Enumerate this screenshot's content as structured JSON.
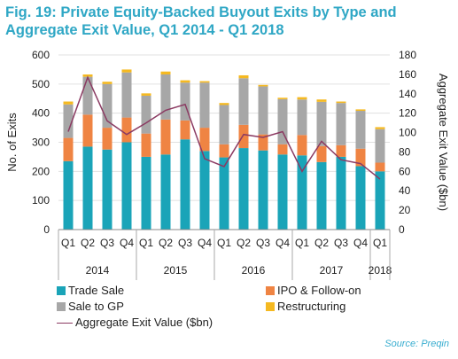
{
  "chart_data": {
    "type": "bar",
    "stacked": true,
    "title": "Fig. 19: Private Equity-Backed Buyout Exits by Type and Aggregate Exit Value, Q1 2014 - Q1 2018",
    "categories": [
      "Q1",
      "Q2",
      "Q3",
      "Q4",
      "Q1",
      "Q2",
      "Q3",
      "Q4",
      "Q1",
      "Q2",
      "Q3",
      "Q4",
      "Q1",
      "Q2",
      "Q3",
      "Q4",
      "Q1"
    ],
    "year_groups": [
      {
        "label": "2014",
        "count": 4
      },
      {
        "label": "2015",
        "count": 4
      },
      {
        "label": "2016",
        "count": 4
      },
      {
        "label": "2017",
        "count": 4
      },
      {
        "label": "2018",
        "count": 1
      }
    ],
    "series": [
      {
        "name": "Trade Sale",
        "color": "#1aa4b8",
        "axis": "left",
        "values": [
          235,
          285,
          275,
          300,
          250,
          258,
          310,
          270,
          248,
          280,
          272,
          258,
          255,
          232,
          250,
          218,
          200
        ]
      },
      {
        "name": "IPO & Follow-on",
        "color": "#ef8443",
        "axis": "left",
        "values": [
          80,
          110,
          75,
          85,
          80,
          120,
          65,
          80,
          45,
          80,
          55,
          35,
          70,
          55,
          40,
          60,
          30
        ]
      },
      {
        "name": "Sale to GP",
        "color": "#a7a7a7",
        "axis": "left",
        "values": [
          115,
          130,
          150,
          155,
          130,
          155,
          130,
          155,
          135,
          160,
          165,
          155,
          122,
          152,
          145,
          130,
          115
        ]
      },
      {
        "name": "Restructuring",
        "color": "#f5b921",
        "axis": "left",
        "values": [
          10,
          8,
          8,
          10,
          8,
          10,
          8,
          5,
          7,
          10,
          5,
          5,
          8,
          8,
          5,
          5,
          7
        ]
      },
      {
        "name": "Aggregate Exit Value ($bn)",
        "color": "#8b3a62",
        "axis": "right",
        "type": "line",
        "values": [
          101,
          157,
          112,
          98,
          110,
          123,
          129,
          73,
          65,
          98,
          95,
          101,
          60,
          91,
          72,
          68,
          52
        ]
      }
    ],
    "ylabel": "No. of Exits",
    "ylim": [
      0,
      600
    ],
    "yticks": [
      0,
      100,
      200,
      300,
      400,
      500,
      600
    ],
    "y2label": "Aggregate Exit Value ($bn)",
    "y2lim": [
      0,
      180
    ],
    "y2ticks": [
      0,
      20,
      40,
      60,
      80,
      100,
      120,
      140,
      160,
      180
    ],
    "grid": true,
    "legend_position": "bottom-left",
    "source": "Source: Preqin"
  }
}
